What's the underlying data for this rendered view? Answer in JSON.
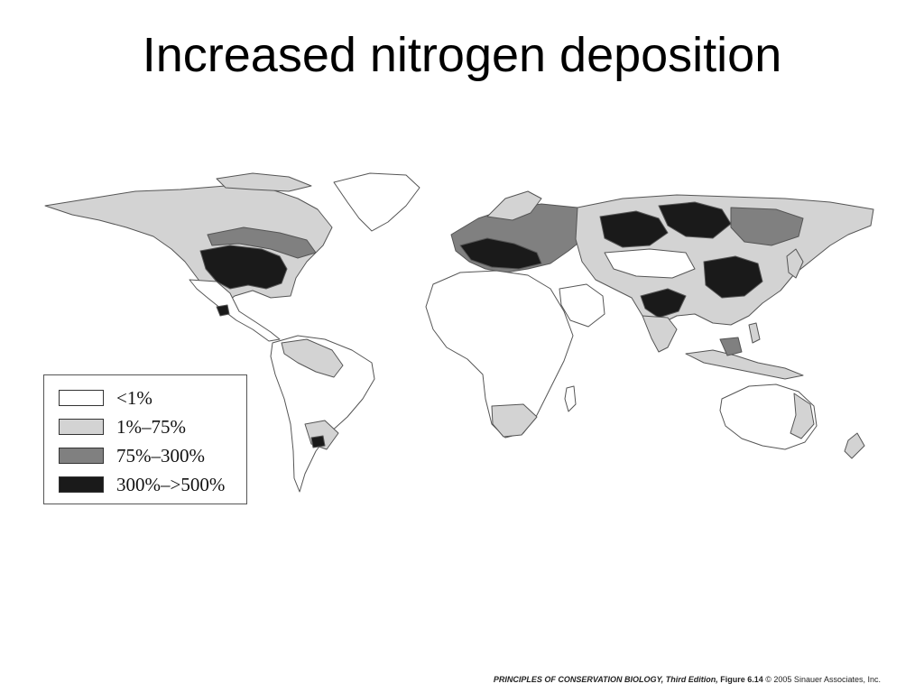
{
  "slide": {
    "title": "Increased nitrogen deposition"
  },
  "map": {
    "colors": {
      "lt1": "#ffffff",
      "p1_75": "#d3d3d3",
      "p75_300": "#808080",
      "p300_500": "#1a1a1a",
      "border": "#555555"
    }
  },
  "legend": {
    "items": [
      {
        "label": "<1%",
        "color": "#ffffff"
      },
      {
        "label": "1%–75%",
        "color": "#d3d3d3"
      },
      {
        "label": "75%–300%",
        "color": "#808080"
      },
      {
        "label": "300%–>500%",
        "color": "#1a1a1a"
      }
    ]
  },
  "credit": {
    "book": "PRINCIPLES OF CONSERVATION BIOLOGY, Third Edition,",
    "figure": "Figure 6.14",
    "copyright": "© 2005 Sinauer Associates, Inc."
  }
}
